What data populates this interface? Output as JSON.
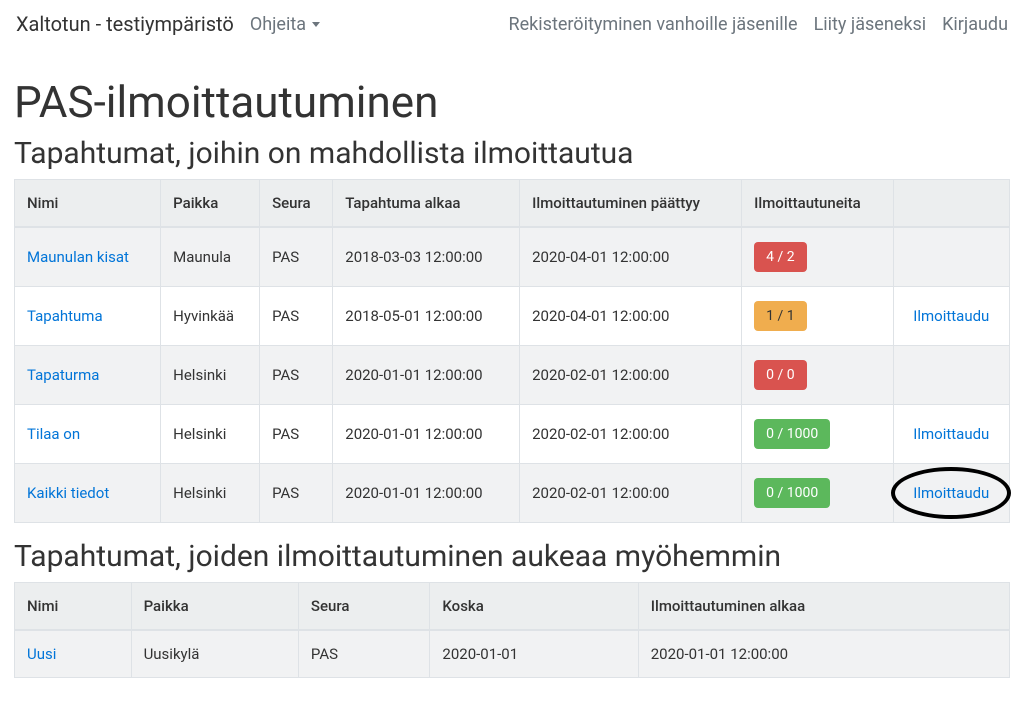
{
  "navbar": {
    "brand": "Xaltotun - testiympäristö",
    "left": [
      {
        "label": "Ohjeita",
        "dropdown": true
      }
    ],
    "right": [
      {
        "label": "Rekisteröityminen vanhoille jäsenille"
      },
      {
        "label": "Liity jäseneksi"
      },
      {
        "label": "Kirjaudu"
      }
    ]
  },
  "page_title": "PAS-ilmoittautuminen",
  "open_section": {
    "heading": "Tapahtumat, joihin on mahdollista ilmoittautua",
    "columns": [
      "Nimi",
      "Paikka",
      "Seura",
      "Tapahtuma alkaa",
      "Ilmoittautuminen päättyy",
      "Ilmoittautuneita",
      ""
    ],
    "rows": [
      {
        "name": "Maunulan kisat",
        "place": "Maunula",
        "club": "PAS",
        "starts": "2018-03-03 12:00:00",
        "closes": "2020-04-01 12:00:00",
        "badge_text": "4 / 2",
        "badge_color": "#d9534f",
        "action": ""
      },
      {
        "name": "Tapahtuma",
        "place": "Hyvinkää",
        "club": "PAS",
        "starts": "2018-05-01 12:00:00",
        "closes": "2020-04-01 12:00:00",
        "badge_text": "1 / 1",
        "badge_color": "#f0ad4e",
        "action": "Ilmoittaudu"
      },
      {
        "name": "Tapaturma",
        "place": "Helsinki",
        "club": "PAS",
        "starts": "2020-01-01 12:00:00",
        "closes": "2020-02-01 12:00:00",
        "badge_text": "0 / 0",
        "badge_color": "#d9534f",
        "action": ""
      },
      {
        "name": "Tilaa on",
        "place": "Helsinki",
        "club": "PAS",
        "starts": "2020-01-01 12:00:00",
        "closes": "2020-02-01 12:00:00",
        "badge_text": "0 / 1000",
        "badge_color": "#5cb85c",
        "action": "Ilmoittaudu"
      },
      {
        "name": "Kaikki tiedot",
        "place": "Helsinki",
        "club": "PAS",
        "starts": "2020-01-01 12:00:00",
        "closes": "2020-02-01 12:00:00",
        "badge_text": "0 / 1000",
        "badge_color": "#5cb85c",
        "action": "Ilmoittaudu",
        "circled": true
      }
    ]
  },
  "future_section": {
    "heading": "Tapahtumat, joiden ilmoittautuminen aukeaa myöhemmin",
    "columns": [
      "Nimi",
      "Paikka",
      "Seura",
      "Koska",
      "Ilmoittautuminen alkaa"
    ],
    "rows": [
      {
        "name": "Uusi",
        "place": "Uusikylä",
        "club": "PAS",
        "when": "2020-01-01",
        "opens": "2020-01-01 12:00:00"
      }
    ]
  }
}
